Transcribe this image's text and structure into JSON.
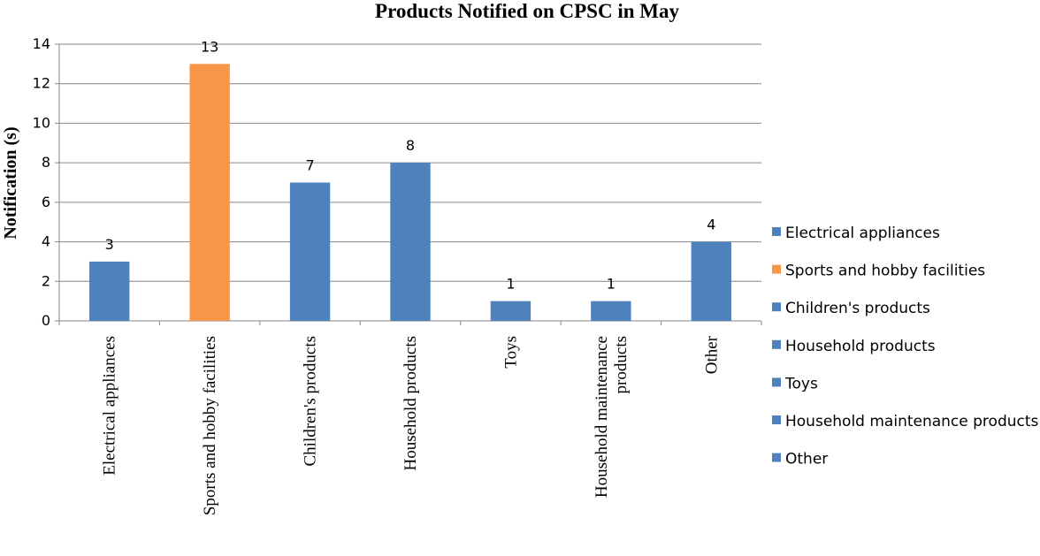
{
  "chart_data": {
    "type": "bar",
    "title": "Products Notified on CPSC in May",
    "xlabel": "",
    "ylabel": "Notification (s)",
    "ylim": [
      0,
      14
    ],
    "yticks": [
      0,
      2,
      4,
      6,
      8,
      10,
      12,
      14
    ],
    "grid": true,
    "legend_position": "right",
    "categories": [
      "Electrical appliances",
      "Sports and hobby facilities",
      "Children's products",
      "Household products",
      "Toys",
      "Household maintenance products",
      "Other"
    ],
    "category_tick_lines": [
      [
        "Electrical appliances"
      ],
      [
        "Sports and hobby facilities"
      ],
      [
        "Children's products"
      ],
      [
        "Household products"
      ],
      [
        "Toys"
      ],
      [
        "Household  maintenance",
        "products"
      ],
      [
        "Other"
      ]
    ],
    "values": [
      3,
      13,
      7,
      8,
      1,
      1,
      4
    ],
    "data_labels": [
      "3",
      "13",
      "7",
      "8",
      "1",
      "1",
      "4"
    ],
    "colors": [
      "#4f81bd",
      "#f79646",
      "#4f81bd",
      "#4f81bd",
      "#4f81bd",
      "#4f81bd",
      "#4f81bd"
    ],
    "legend": [
      "Electrical appliances",
      "Sports and hobby facilities",
      "Children's products",
      "Household products",
      "Toys",
      "Household maintenance products",
      "Other"
    ],
    "grid_color": "#868686",
    "axis_color": "#868686"
  }
}
